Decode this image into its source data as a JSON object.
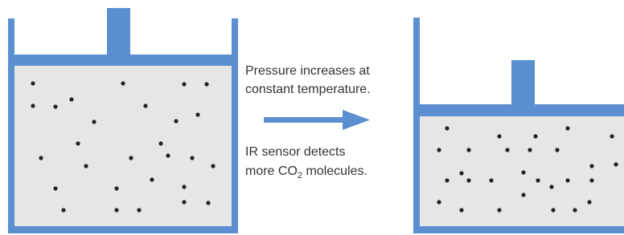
{
  "caption_top": {
    "lines": [
      "Pressure increases at",
      "constant temperature."
    ]
  },
  "caption_bottom": {
    "line1": "IR sensor detects",
    "line2": {
      "before": "more CO",
      "subscript": "2",
      "after": " molecules."
    }
  }
}
